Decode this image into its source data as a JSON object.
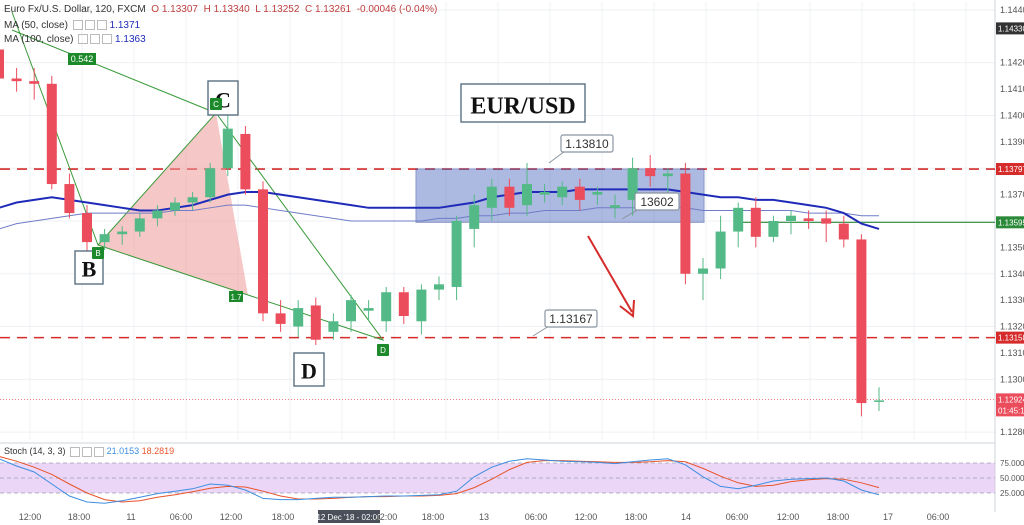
{
  "header": {
    "symbol_line": "Euro Fx/U.S. Dollar, 120, FXCM",
    "open": "O 1.13307",
    "high": "H 1.13340",
    "low": "L 1.13252",
    "close": "C 1.13261",
    "change": "-0.00046 (-0.04%)",
    "ma50_label": "MA (50, close)",
    "ma50_value": "1.1371",
    "ma100_label": "MA (100, close)",
    "ma100_value": "1.1363",
    "stoch_label": "Stoch (14, 3, 3)",
    "stoch_k": "21.0153",
    "stoch_d": "18.2819"
  },
  "annotations": {
    "title_box": "EUR/USD",
    "point_b": "B",
    "point_c": "C",
    "point_d": "D",
    "small_b": "B",
    "small_c": "C",
    "small_d": "D",
    "ratio_label": "0.542",
    "ratio_label_2": "1.7",
    "callout_high": "1.13810",
    "callout_mid": "13602",
    "callout_low": "1.13167",
    "crosshair_date": "12 Dec '18 - 02:00"
  },
  "colors": {
    "bull": "#53b987",
    "bear": "#eb4d5c",
    "ma50": "#1f2bb8",
    "ma100": "#6f7cc7",
    "resistance": "#d62b2b",
    "stoch_k": "#3d8ee0",
    "stoch_d": "#e8542a",
    "stoch_bg": "#e4c8f5",
    "harmonic": "#ee9999",
    "box": "#6a80c7"
  },
  "chart_data": {
    "type": "candlestick",
    "price_axis": {
      "ticks": [
        "1.14400",
        "1.14200",
        "1.14000",
        "1.13800",
        "1.13600",
        "1.13400",
        "1.13200",
        "1.13000",
        "1.12800"
      ],
      "labels": [
        "1.14400",
        "1.14330",
        "1.14200",
        "1.14100",
        "1.14000",
        "1.13900",
        "1.13797",
        "1.13700",
        "1.13600",
        "1.13595",
        "1.13500",
        "1.13400",
        "1.13300",
        "1.13200",
        "1.13158",
        "1.13100",
        "1.13000",
        "1.12924",
        "1.12800"
      ]
    },
    "badges": [
      {
        "value": "1.14330",
        "color": "#333333"
      },
      {
        "value": "1.13797",
        "color": "#d62b2b"
      },
      {
        "value": "1.13595",
        "color": "#2a8a3a"
      },
      {
        "value": "1.13158",
        "color": "#d62b2b"
      },
      {
        "value": "1.12924",
        "color": "#eb4d5c"
      },
      {
        "value": "01:45:17",
        "color": "#eb4d5c"
      }
    ],
    "x_ticks": [
      "12:00",
      "18:00",
      "11",
      "06:00",
      "12:00",
      "18:00",
      "12 Dec '18 - 02:00",
      "12:00",
      "18:00",
      "13",
      "06:00",
      "12:00",
      "18:00",
      "14",
      "06:00",
      "12:00",
      "18:00",
      "17",
      "06:00"
    ],
    "stoch_ticks": [
      "75.0000",
      "50.0000",
      "25.0000"
    ],
    "candles": [
      {
        "o": 1.1425,
        "h": 1.1443,
        "l": 1.1411,
        "c": 1.1414
      },
      {
        "o": 1.1414,
        "h": 1.1418,
        "l": 1.1409,
        "c": 1.1413
      },
      {
        "o": 1.1413,
        "h": 1.1418,
        "l": 1.1406,
        "c": 1.1412
      },
      {
        "o": 1.1412,
        "h": 1.1415,
        "l": 1.1372,
        "c": 1.1374
      },
      {
        "o": 1.1374,
        "h": 1.1378,
        "l": 1.1361,
        "c": 1.1363
      },
      {
        "o": 1.1363,
        "h": 1.1366,
        "l": 1.1348,
        "c": 1.1352
      },
      {
        "o": 1.1352,
        "h": 1.1357,
        "l": 1.1349,
        "c": 1.1355
      },
      {
        "o": 1.1355,
        "h": 1.1358,
        "l": 1.1351,
        "c": 1.1356
      },
      {
        "o": 1.1356,
        "h": 1.1363,
        "l": 1.1354,
        "c": 1.1361
      },
      {
        "o": 1.1361,
        "h": 1.1366,
        "l": 1.1358,
        "c": 1.1364
      },
      {
        "o": 1.1364,
        "h": 1.1369,
        "l": 1.1362,
        "c": 1.1367
      },
      {
        "o": 1.1367,
        "h": 1.1371,
        "l": 1.1364,
        "c": 1.1369
      },
      {
        "o": 1.1369,
        "h": 1.1382,
        "l": 1.1367,
        "c": 1.138
      },
      {
        "o": 1.138,
        "h": 1.1401,
        "l": 1.1377,
        "c": 1.1395
      },
      {
        "o": 1.1393,
        "h": 1.1396,
        "l": 1.137,
        "c": 1.1372
      },
      {
        "o": 1.1372,
        "h": 1.1375,
        "l": 1.1322,
        "c": 1.1325
      },
      {
        "o": 1.1325,
        "h": 1.133,
        "l": 1.1318,
        "c": 1.1321
      },
      {
        "o": 1.132,
        "h": 1.133,
        "l": 1.1316,
        "c": 1.1327
      },
      {
        "o": 1.1328,
        "h": 1.1331,
        "l": 1.1313,
        "c": 1.1315
      },
      {
        "o": 1.1318,
        "h": 1.1325,
        "l": 1.1315,
        "c": 1.1322
      },
      {
        "o": 1.1322,
        "h": 1.1332,
        "l": 1.1318,
        "c": 1.133
      },
      {
        "o": 1.1326,
        "h": 1.133,
        "l": 1.1322,
        "c": 1.1327
      },
      {
        "o": 1.1322,
        "h": 1.1335,
        "l": 1.1318,
        "c": 1.1333
      },
      {
        "o": 1.1333,
        "h": 1.1335,
        "l": 1.1321,
        "c": 1.1324
      },
      {
        "o": 1.1322,
        "h": 1.1336,
        "l": 1.1317,
        "c": 1.1334
      },
      {
        "o": 1.1334,
        "h": 1.1339,
        "l": 1.133,
        "c": 1.1336
      },
      {
        "o": 1.1335,
        "h": 1.1362,
        "l": 1.133,
        "c": 1.136
      },
      {
        "o": 1.1357,
        "h": 1.137,
        "l": 1.135,
        "c": 1.1366
      },
      {
        "o": 1.1365,
        "h": 1.1376,
        "l": 1.136,
        "c": 1.1373
      },
      {
        "o": 1.1373,
        "h": 1.1376,
        "l": 1.1362,
        "c": 1.1365
      },
      {
        "o": 1.1366,
        "h": 1.1382,
        "l": 1.1362,
        "c": 1.1374
      },
      {
        "o": 1.137,
        "h": 1.1374,
        "l": 1.1367,
        "c": 1.1371
      },
      {
        "o": 1.1369,
        "h": 1.1375,
        "l": 1.1366,
        "c": 1.1373
      },
      {
        "o": 1.1373,
        "h": 1.1376,
        "l": 1.1364,
        "c": 1.1368
      },
      {
        "o": 1.137,
        "h": 1.1373,
        "l": 1.1366,
        "c": 1.1371
      },
      {
        "o": 1.1365,
        "h": 1.137,
        "l": 1.1361,
        "c": 1.1366
      },
      {
        "o": 1.1368,
        "h": 1.1384,
        "l": 1.1362,
        "c": 1.138
      },
      {
        "o": 1.138,
        "h": 1.1385,
        "l": 1.1373,
        "c": 1.1377
      },
      {
        "o": 1.1377,
        "h": 1.138,
        "l": 1.137,
        "c": 1.1378
      },
      {
        "o": 1.1378,
        "h": 1.1382,
        "l": 1.1336,
        "c": 1.134
      },
      {
        "o": 1.134,
        "h": 1.1346,
        "l": 1.133,
        "c": 1.1342
      },
      {
        "o": 1.1342,
        "h": 1.1362,
        "l": 1.1338,
        "c": 1.1356
      },
      {
        "o": 1.1356,
        "h": 1.1367,
        "l": 1.135,
        "c": 1.1365
      },
      {
        "o": 1.1365,
        "h": 1.1369,
        "l": 1.135,
        "c": 1.1354
      },
      {
        "o": 1.1354,
        "h": 1.1362,
        "l": 1.1352,
        "c": 1.136
      },
      {
        "o": 1.136,
        "h": 1.1364,
        "l": 1.1355,
        "c": 1.1362
      },
      {
        "o": 1.1361,
        "h": 1.1364,
        "l": 1.1357,
        "c": 1.136
      },
      {
        "o": 1.1361,
        "h": 1.1364,
        "l": 1.1352,
        "c": 1.1359
      },
      {
        "o": 1.1359,
        "h": 1.1362,
        "l": 1.135,
        "c": 1.1353
      },
      {
        "o": 1.1353,
        "h": 1.1355,
        "l": 1.1286,
        "c": 1.1291
      },
      {
        "o": 1.1292,
        "h": 1.1297,
        "l": 1.1288,
        "c": 1.1292
      }
    ],
    "ma50": [
      1.1365,
      1.1367,
      1.1368,
      1.1369,
      1.1368,
      1.1367,
      1.1366,
      1.1365,
      1.1364,
      1.1364,
      1.1365,
      1.1366,
      1.1368,
      1.137,
      1.1371,
      1.1371,
      1.137,
      1.1369,
      1.1368,
      1.1367,
      1.1366,
      1.1365,
      1.1365,
      1.1365,
      1.1365,
      1.1365,
      1.1366,
      1.1367,
      1.1369,
      1.137,
      1.1371,
      1.1371,
      1.1371,
      1.1372,
      1.1372,
      1.1372,
      1.1372,
      1.1372,
      1.1372,
      1.1371,
      1.137,
      1.1369,
      1.1369,
      1.1368,
      1.1368,
      1.1367,
      1.1366,
      1.1365,
      1.1363,
      1.1359,
      1.1357
    ],
    "ma100": [
      1.1357,
      1.1359,
      1.136,
      1.1361,
      1.1362,
      1.1363,
      1.1363,
      1.1363,
      1.1363,
      1.1363,
      1.1364,
      1.1364,
      1.1365,
      1.1366,
      1.1366,
      1.1365,
      1.1364,
      1.1363,
      1.1362,
      1.1361,
      1.136,
      1.136,
      1.136,
      1.136,
      1.136,
      1.1361,
      1.1361,
      1.1362,
      1.1362,
      1.1363,
      1.1363,
      1.1364,
      1.1364,
      1.1364,
      1.1365,
      1.1365,
      1.1365,
      1.1365,
      1.1365,
      1.1365,
      1.1364,
      1.1364,
      1.1364,
      1.1364,
      1.1364,
      1.1364,
      1.1363,
      1.1363,
      1.1363,
      1.1362,
      1.1362
    ],
    "stoch_k": [
      82,
      70,
      60,
      40,
      20,
      10,
      8,
      12,
      18,
      24,
      28,
      32,
      40,
      38,
      30,
      16,
      14,
      14,
      16,
      18,
      18,
      19,
      20,
      20,
      21,
      22,
      28,
      52,
      68,
      78,
      82,
      80,
      78,
      77,
      76,
      74,
      77,
      80,
      82,
      72,
      52,
      36,
      32,
      38,
      45,
      48,
      49,
      50,
      45,
      30,
      22
    ],
    "stoch_d": [
      86,
      78,
      68,
      56,
      40,
      25,
      14,
      10,
      12,
      18,
      22,
      27,
      33,
      36,
      35,
      28,
      20,
      15,
      15,
      16,
      18,
      19,
      19,
      20,
      20,
      21,
      24,
      34,
      48,
      64,
      76,
      79,
      79,
      78,
      77,
      76,
      76,
      77,
      79,
      77,
      66,
      53,
      42,
      36,
      38,
      44,
      47,
      49,
      48,
      42,
      34
    ],
    "levels": [
      {
        "price": 1.13797,
        "style": "dashed-red"
      },
      {
        "price": 1.13595,
        "style": "solid-green"
      },
      {
        "price": 1.13158,
        "style": "dashed-red"
      }
    ]
  }
}
